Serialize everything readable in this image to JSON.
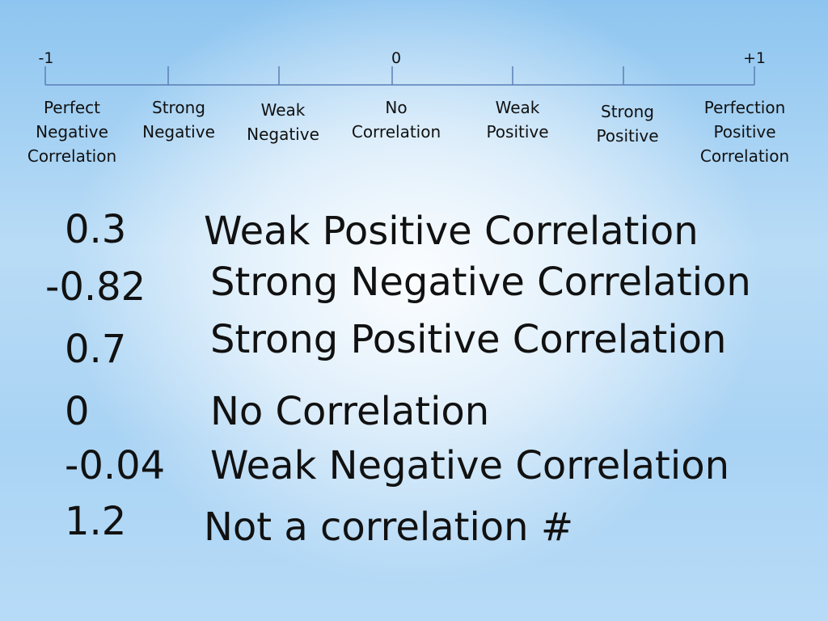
{
  "scale": {
    "min_label": "-1",
    "mid_label": "0",
    "max_label": "+1",
    "line_color": "#5b7fb6",
    "categories": [
      "Perfect\nNegative\nCorrelation",
      "Strong\nNegative",
      "Weak\nNegative",
      "No\nCorrelation",
      "Weak\nPositive",
      "Strong\nPositive",
      "Perfection\nPositive\nCorrelation"
    ]
  },
  "examples": [
    {
      "value": "0.3",
      "description": "Weak Positive Correlation"
    },
    {
      "value": "-0.82",
      "description": "Strong Negative Correlation"
    },
    {
      "value": "0.7",
      "description": "Strong Positive Correlation"
    },
    {
      "value": "0",
      "description": "No Correlation"
    },
    {
      "value": "-0.04",
      "description": "Weak Negative Correlation"
    },
    {
      "value": "1.2",
      "description": "Not a correlation #"
    }
  ]
}
